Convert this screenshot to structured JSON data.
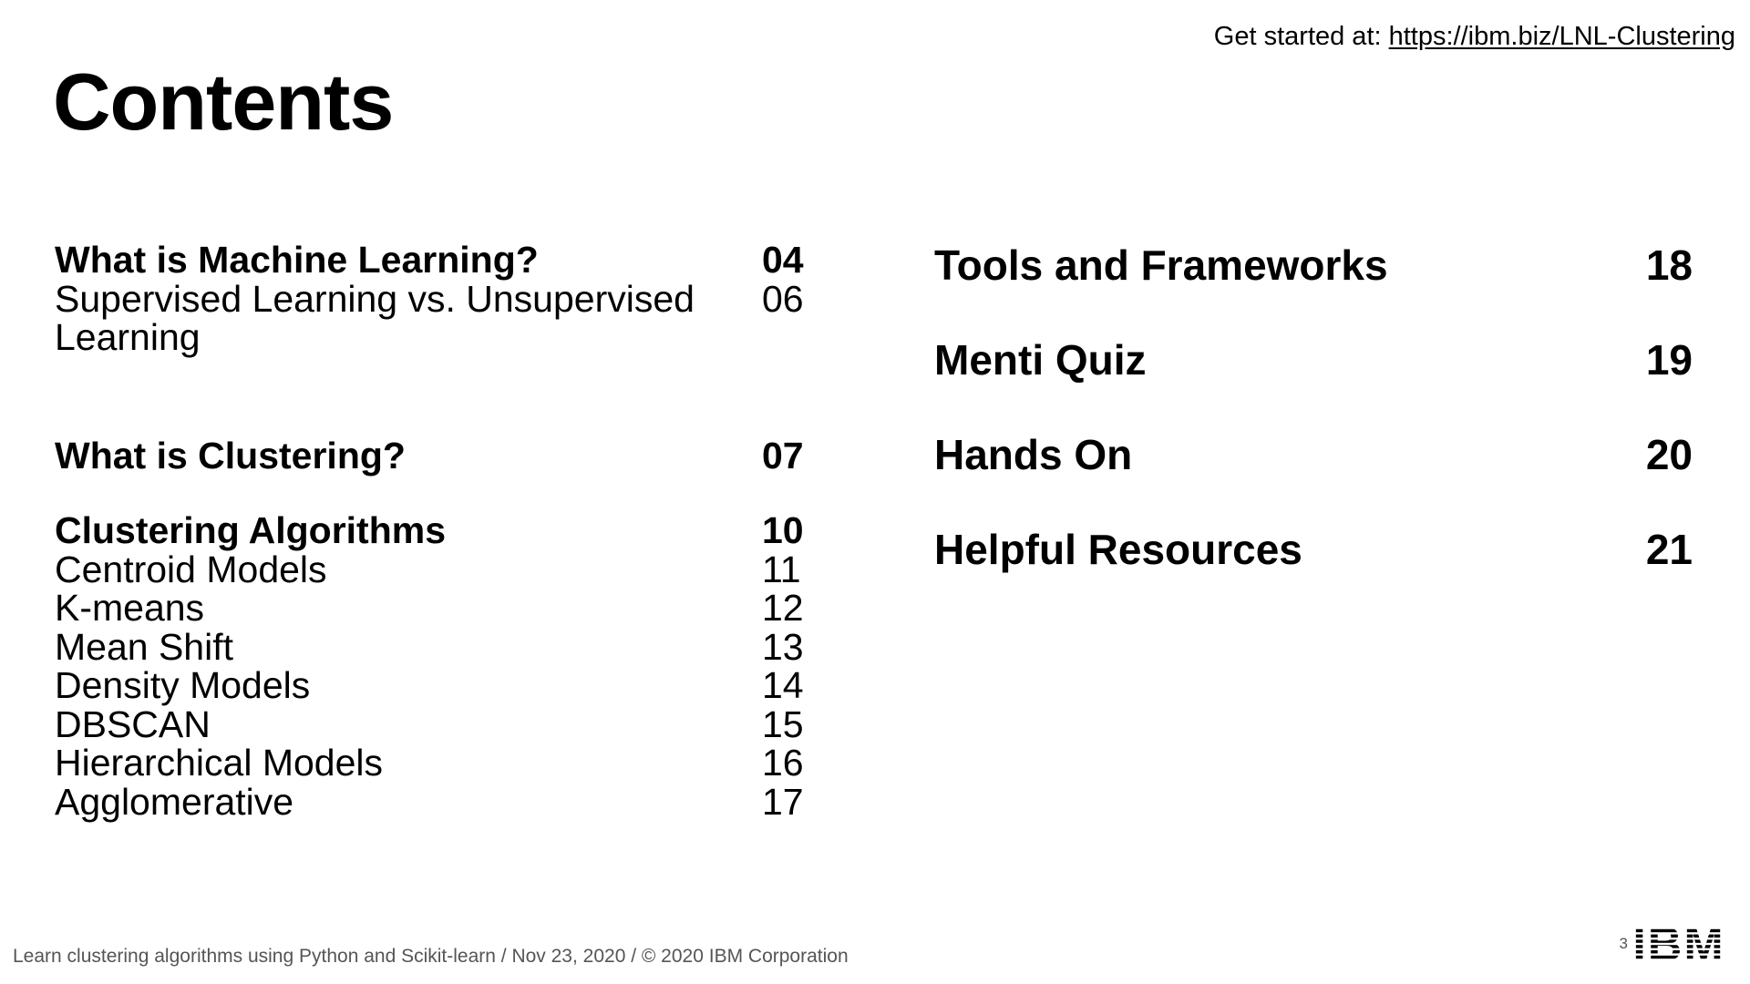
{
  "header": {
    "get_started_label": "Get started at: ",
    "get_started_link": "https://ibm.biz/LNL-Clustering"
  },
  "title": "Contents",
  "toc": {
    "left": [
      {
        "entries": [
          {
            "label": "What is Machine Learning?",
            "page": "04",
            "heading": true
          },
          {
            "label": "Supervised Learning vs. Unsupervised Learning",
            "page": "06",
            "heading": false
          }
        ]
      },
      {
        "entries": [
          {
            "label": "What is Clustering?",
            "page": "07",
            "heading": true
          }
        ]
      },
      {
        "entries": [
          {
            "label": "Clustering Algorithms",
            "page": "10",
            "heading": true
          },
          {
            "label": "Centroid Models",
            "page": "11",
            "heading": false
          },
          {
            "label": "K-means",
            "page": "12",
            "heading": false
          },
          {
            "label": "Mean Shift",
            "page": "13",
            "heading": false
          },
          {
            "label": "Density Models",
            "page": "14",
            "heading": false
          },
          {
            "label": "DBSCAN",
            "page": "15",
            "heading": false
          },
          {
            "label": "Hierarchical Models",
            "page": "16",
            "heading": false
          },
          {
            "label": "Agglomerative",
            "page": "17",
            "heading": false
          }
        ]
      }
    ],
    "right": [
      {
        "label": "Tools and Frameworks",
        "page": "18"
      },
      {
        "label": "Menti Quiz",
        "page": "19"
      },
      {
        "label": "Hands On",
        "page": "20"
      },
      {
        "label": "Helpful Resources",
        "page": "21"
      }
    ]
  },
  "footer": {
    "text": "Learn clustering algorithms using Python and Scikit-learn / Nov 23, 2020 / © 2020 IBM Corporation",
    "slide_number": "3",
    "logo": "IBM"
  }
}
